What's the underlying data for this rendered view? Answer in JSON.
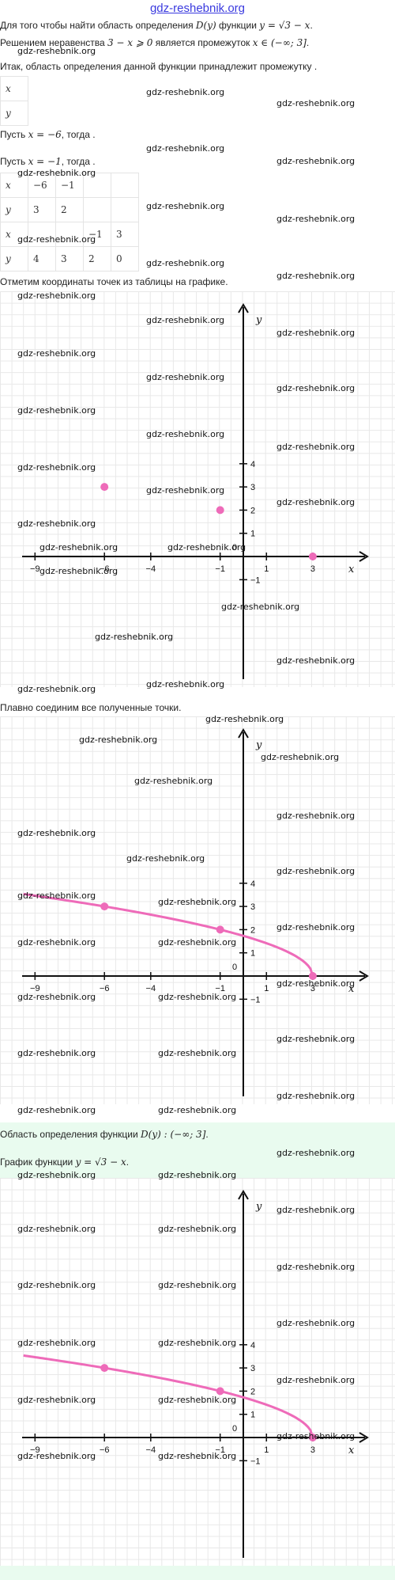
{
  "header": {
    "site": "gdz-reshebnik.org"
  },
  "watermark": "gdz-reshebnik.org",
  "text": {
    "p1_a": "Для того чтобы найти область определения ",
    "p1_math1": "D(y)",
    "p1_b": " функции ",
    "p1_math2": "y = √3 − x",
    "p1_c": ".",
    "p2_a": "Решением неравенства ",
    "p2_math1": "3 − x ⩾ 0",
    "p2_b": " является промежуток ",
    "p2_math2": "x ∈ (−∞; 3]",
    "p2_c": ".",
    "p3": "Итак, область определения данной функции принадлежит промежутку .",
    "p4_a": "Пусть ",
    "p4_math": "x = −6",
    "p4_b": ", тогда .",
    "p5_a": "Пусть ",
    "p5_math": "x = −1",
    "p5_b": ", тогда .",
    "p6": "Отметим координаты точек из таблицы на графике.",
    "p7": "Плавно соединим все полученные точки.",
    "answer1_a": "Область определения функции ",
    "answer1_math": "D(y) : (−∞; 3]",
    "answer1_b": ".",
    "answer2_a": "График функции ",
    "answer2_math": "y = √3 − x",
    "answer2_b": "."
  },
  "table1": {
    "x_label": "x",
    "y_label": "y"
  },
  "table2": {
    "rows": [
      {
        "label": "x",
        "values": [
          "−6",
          "−1",
          "",
          ""
        ]
      },
      {
        "label": "y",
        "values": [
          "3",
          "2",
          "",
          ""
        ]
      },
      {
        "label": "x",
        "values": [
          "",
          "",
          "−1",
          "3"
        ]
      },
      {
        "label": "y",
        "values": [
          "4",
          "3",
          "2",
          "0"
        ]
      }
    ]
  },
  "colors": {
    "curve": "#ee6bb9",
    "axis": "#111111",
    "grid": "#e8e8e8",
    "answer_bg": "#e9fbef",
    "link": "#3a3adf"
  },
  "chart_data": [
    {
      "type": "scatter",
      "xlabel": "x",
      "ylabel": "y",
      "origin_label": "0",
      "xlim": [
        -10,
        5
      ],
      "ylim": [
        -4,
        8
      ],
      "x_ticks": [
        -9,
        -6,
        -4,
        -1,
        1,
        3
      ],
      "y_ticks": [
        4,
        3,
        2,
        1,
        -1
      ],
      "grid": true,
      "points": [
        {
          "x": -6,
          "y": 3
        },
        {
          "x": -1,
          "y": 2
        },
        {
          "x": 3,
          "y": 0
        }
      ],
      "curve": false
    },
    {
      "type": "line",
      "xlabel": "x",
      "ylabel": "y",
      "origin_label": "0",
      "xlim": [
        -10,
        5
      ],
      "ylim": [
        -4,
        8
      ],
      "x_ticks": [
        -9,
        -6,
        -4,
        -1,
        1,
        3
      ],
      "y_ticks": [
        4,
        3,
        2,
        1,
        -1
      ],
      "grid": true,
      "points": [
        {
          "x": -6,
          "y": 3
        },
        {
          "x": -1,
          "y": 2
        },
        {
          "x": 3,
          "y": 0
        }
      ],
      "curve": true,
      "function": "sqrt(3 - x)",
      "curve_domain": [
        -9.5,
        3
      ]
    },
    {
      "type": "line",
      "xlabel": "x",
      "ylabel": "y",
      "origin_label": "0",
      "xlim": [
        -10,
        5
      ],
      "ylim": [
        -4,
        8
      ],
      "x_ticks": [
        -9,
        -6,
        -4,
        -1,
        1,
        3
      ],
      "y_ticks": [
        4,
        3,
        2,
        1,
        -1
      ],
      "grid": true,
      "points": [
        {
          "x": -6,
          "y": 3
        },
        {
          "x": -1,
          "y": 2
        },
        {
          "x": 3,
          "y": 0
        }
      ],
      "curve": true,
      "function": "sqrt(3 - x)",
      "curve_domain": [
        -9.5,
        3
      ]
    }
  ]
}
